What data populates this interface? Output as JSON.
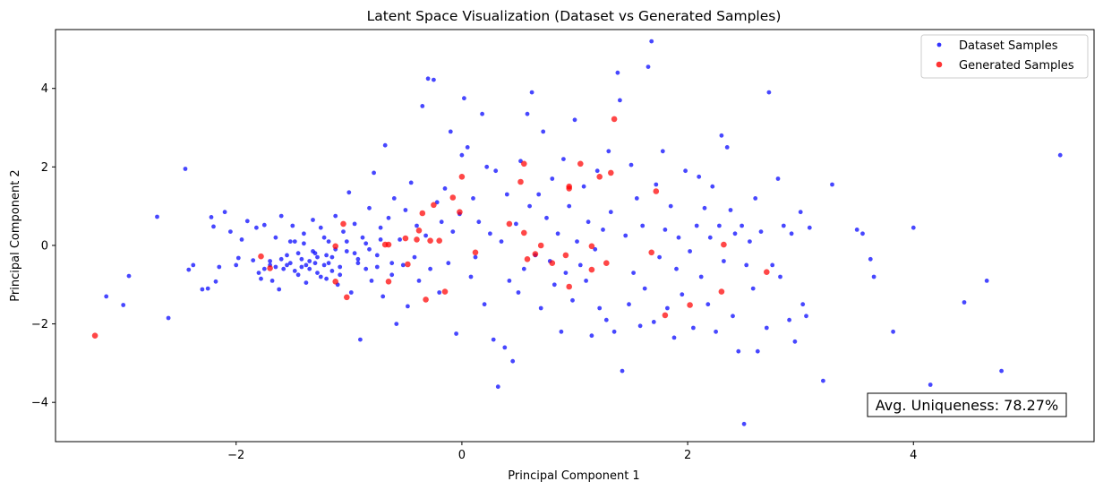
{
  "chart_data": {
    "type": "scatter",
    "title": "Latent Space Visualization (Dataset vs Generated Samples)",
    "xlabel": "Principal Component 1",
    "ylabel": "Principal Component 2",
    "xlim": [
      -3.6,
      5.6
    ],
    "ylim": [
      -5.0,
      5.5
    ],
    "xticks": [
      -2,
      0,
      2,
      4
    ],
    "xtick_labels": [
      "−2",
      "0",
      "2",
      "4"
    ],
    "yticks": [
      -4,
      -2,
      0,
      2,
      4
    ],
    "ytick_labels": [
      "−4",
      "−2",
      "0",
      "2",
      "4"
    ],
    "grid": false,
    "legend_position": "top-right",
    "annotation": "Avg. Uniqueness: 78.27%",
    "series": [
      {
        "name": "Dataset Samples",
        "color": "#0000ff",
        "points": [
          [
            -3.15,
            -1.3
          ],
          [
            -3.0,
            -1.52
          ],
          [
            -2.95,
            -0.78
          ],
          [
            -2.7,
            0.73
          ],
          [
            -2.6,
            -1.85
          ],
          [
            -2.45,
            1.95
          ],
          [
            -2.42,
            -0.62
          ],
          [
            -2.38,
            -0.5
          ],
          [
            -2.3,
            -1.12
          ],
          [
            -2.25,
            -1.1
          ],
          [
            -2.22,
            0.72
          ],
          [
            -2.2,
            0.48
          ],
          [
            -2.18,
            -0.92
          ],
          [
            -2.15,
            -0.55
          ],
          [
            -2.1,
            0.85
          ],
          [
            -2.05,
            0.35
          ],
          [
            -2.0,
            -0.5
          ],
          [
            -1.98,
            -0.32
          ],
          [
            -1.95,
            0.15
          ],
          [
            -1.9,
            0.62
          ],
          [
            -1.85,
            -0.38
          ],
          [
            -1.82,
            0.45
          ],
          [
            -1.8,
            -0.7
          ],
          [
            -1.78,
            -0.85
          ],
          [
            -1.75,
            0.52
          ],
          [
            -1.7,
            -0.5
          ],
          [
            -1.68,
            -0.9
          ],
          [
            -1.65,
            0.2
          ],
          [
            -1.62,
            -1.12
          ],
          [
            -1.6,
            0.75
          ],
          [
            -1.58,
            -0.6
          ],
          [
            -1.55,
            -0.25
          ],
          [
            -1.52,
            -0.45
          ],
          [
            -1.5,
            0.5
          ],
          [
            -1.48,
            0.1
          ],
          [
            -1.45,
            -0.75
          ],
          [
            -1.42,
            -0.55
          ],
          [
            -1.4,
            0.3
          ],
          [
            -1.38,
            -0.95
          ],
          [
            -1.35,
            -0.4
          ],
          [
            -1.32,
            0.65
          ],
          [
            -1.3,
            -0.2
          ],
          [
            -1.28,
            -0.7
          ],
          [
            -1.25,
            0.45
          ],
          [
            -1.22,
            -0.5
          ],
          [
            -1.2,
            -0.85
          ],
          [
            -1.18,
            0.1
          ],
          [
            -1.15,
            -0.3
          ],
          [
            -1.12,
            0.75
          ],
          [
            -1.1,
            -1.0
          ],
          [
            -1.08,
            -0.55
          ],
          [
            -1.05,
            0.35
          ],
          [
            -1.02,
            -0.15
          ],
          [
            -1.0,
            1.35
          ],
          [
            -0.98,
            -1.2
          ],
          [
            -0.95,
            0.55
          ],
          [
            -0.92,
            -0.45
          ],
          [
            -0.9,
            -2.4
          ],
          [
            -0.88,
            0.2
          ],
          [
            -0.85,
            -0.6
          ],
          [
            -0.82,
            0.95
          ],
          [
            -0.8,
            -0.9
          ],
          [
            -0.78,
            1.85
          ],
          [
            -0.75,
            -0.25
          ],
          [
            -0.72,
            0.45
          ],
          [
            -0.7,
            -1.3
          ],
          [
            -0.68,
            2.55
          ],
          [
            -0.65,
            0.7
          ],
          [
            -0.62,
            -0.75
          ],
          [
            -0.6,
            1.2
          ],
          [
            -0.58,
            -2.0
          ],
          [
            -0.55,
            0.15
          ],
          [
            -0.52,
            -0.5
          ],
          [
            -0.5,
            0.9
          ],
          [
            -0.48,
            -1.55
          ],
          [
            -0.45,
            1.6
          ],
          [
            -0.42,
            -0.3
          ],
          [
            -0.4,
            0.5
          ],
          [
            -0.38,
            -0.9
          ],
          [
            -0.35,
            3.55
          ],
          [
            -0.32,
            0.25
          ],
          [
            -0.3,
            4.25
          ],
          [
            -0.28,
            -0.6
          ],
          [
            -0.25,
            4.22
          ],
          [
            -0.22,
            1.1
          ],
          [
            -0.2,
            -1.2
          ],
          [
            -0.18,
            0.6
          ],
          [
            -0.15,
            1.45
          ],
          [
            -0.12,
            -0.45
          ],
          [
            -0.1,
            2.9
          ],
          [
            -0.08,
            0.35
          ],
          [
            -0.05,
            -2.25
          ],
          [
            -0.02,
            0.8
          ],
          [
            0.0,
            2.3
          ],
          [
            0.02,
            3.75
          ],
          [
            0.05,
            2.5
          ],
          [
            0.08,
            -0.8
          ],
          [
            0.1,
            1.2
          ],
          [
            0.12,
            -0.3
          ],
          [
            0.15,
            0.6
          ],
          [
            0.18,
            3.35
          ],
          [
            0.2,
            -1.5
          ],
          [
            0.22,
            2.0
          ],
          [
            0.25,
            0.3
          ],
          [
            0.28,
            -2.4
          ],
          [
            0.3,
            1.9
          ],
          [
            0.32,
            -3.6
          ],
          [
            0.35,
            0.1
          ],
          [
            0.38,
            -2.6
          ],
          [
            0.4,
            1.3
          ],
          [
            0.42,
            -0.9
          ],
          [
            0.45,
            -2.95
          ],
          [
            0.48,
            0.55
          ],
          [
            0.5,
            -1.2
          ],
          [
            0.52,
            2.15
          ],
          [
            0.55,
            -0.6
          ],
          [
            0.58,
            3.35
          ],
          [
            0.6,
            1.0
          ],
          [
            0.62,
            3.9
          ],
          [
            0.65,
            -0.25
          ],
          [
            0.68,
            1.3
          ],
          [
            0.7,
            -1.6
          ],
          [
            0.72,
            2.9
          ],
          [
            0.75,
            0.7
          ],
          [
            0.78,
            -0.4
          ],
          [
            0.8,
            1.7
          ],
          [
            0.82,
            -1.0
          ],
          [
            0.85,
            0.3
          ],
          [
            0.88,
            -2.2
          ],
          [
            0.9,
            2.2
          ],
          [
            0.92,
            -0.7
          ],
          [
            0.95,
            1.0
          ],
          [
            0.98,
            -1.4
          ],
          [
            1.0,
            3.2
          ],
          [
            1.02,
            0.1
          ],
          [
            1.05,
            -0.5
          ],
          [
            1.08,
            1.5
          ],
          [
            1.1,
            -0.9
          ],
          [
            1.12,
            0.6
          ],
          [
            1.15,
            -2.3
          ],
          [
            1.18,
            -0.1
          ],
          [
            1.2,
            1.9
          ],
          [
            1.22,
            -1.6
          ],
          [
            1.25,
            0.4
          ],
          [
            1.28,
            -1.9
          ],
          [
            1.3,
            2.4
          ],
          [
            1.32,
            0.85
          ],
          [
            1.35,
            -2.2
          ],
          [
            1.38,
            4.4
          ],
          [
            1.4,
            3.7
          ],
          [
            1.42,
            -3.2
          ],
          [
            1.45,
            0.25
          ],
          [
            1.48,
            -1.5
          ],
          [
            1.5,
            2.05
          ],
          [
            1.52,
            -0.7
          ],
          [
            1.55,
            1.2
          ],
          [
            1.58,
            -2.05
          ],
          [
            1.6,
            0.5
          ],
          [
            1.62,
            -1.1
          ],
          [
            1.65,
            4.55
          ],
          [
            1.68,
            5.2
          ],
          [
            1.7,
            -1.95
          ],
          [
            1.72,
            1.55
          ],
          [
            1.75,
            -0.3
          ],
          [
            1.78,
            2.4
          ],
          [
            1.8,
            0.4
          ],
          [
            1.82,
            -1.6
          ],
          [
            1.85,
            1.0
          ],
          [
            1.88,
            -2.35
          ],
          [
            1.9,
            -0.6
          ],
          [
            1.92,
            0.2
          ],
          [
            1.95,
            -1.25
          ],
          [
            1.98,
            1.9
          ],
          [
            2.02,
            -0.15
          ],
          [
            2.05,
            -2.1
          ],
          [
            2.08,
            0.5
          ],
          [
            2.1,
            1.75
          ],
          [
            2.12,
            -0.8
          ],
          [
            2.15,
            0.95
          ],
          [
            2.18,
            -1.5
          ],
          [
            2.2,
            0.2
          ],
          [
            2.22,
            1.5
          ],
          [
            2.25,
            -2.2
          ],
          [
            2.28,
            0.5
          ],
          [
            2.3,
            2.8
          ],
          [
            2.32,
            -0.4
          ],
          [
            2.35,
            2.5
          ],
          [
            2.38,
            0.9
          ],
          [
            2.4,
            -1.8
          ],
          [
            2.42,
            0.3
          ],
          [
            2.45,
            -2.7
          ],
          [
            2.48,
            0.5
          ],
          [
            2.5,
            -4.55
          ],
          [
            2.52,
            -0.5
          ],
          [
            2.55,
            0.1
          ],
          [
            2.58,
            -1.1
          ],
          [
            2.6,
            1.2
          ],
          [
            2.62,
            -2.7
          ],
          [
            2.65,
            0.35
          ],
          [
            2.7,
            -2.1
          ],
          [
            2.72,
            3.9
          ],
          [
            2.75,
            -0.5
          ],
          [
            2.8,
            1.7
          ],
          [
            2.82,
            -0.8
          ],
          [
            2.85,
            0.5
          ],
          [
            2.9,
            -1.9
          ],
          [
            2.92,
            0.3
          ],
          [
            2.95,
            -2.45
          ],
          [
            3.0,
            0.85
          ],
          [
            3.02,
            -1.5
          ],
          [
            3.05,
            -1.8
          ],
          [
            3.08,
            0.45
          ],
          [
            3.2,
            -3.45
          ],
          [
            3.28,
            1.55
          ],
          [
            3.5,
            0.4
          ],
          [
            3.55,
            0.3
          ],
          [
            3.62,
            -0.35
          ],
          [
            3.65,
            -0.8
          ],
          [
            3.82,
            -2.2
          ],
          [
            4.0,
            0.45
          ],
          [
            4.15,
            -3.55
          ],
          [
            4.45,
            -1.45
          ],
          [
            4.65,
            -0.9
          ],
          [
            4.78,
            -3.2
          ],
          [
            5.3,
            2.3
          ],
          [
            -1.55,
            -0.5
          ],
          [
            -1.48,
            -0.65
          ],
          [
            -1.42,
            -0.35
          ],
          [
            -1.35,
            -0.6
          ],
          [
            -1.3,
            -0.45
          ],
          [
            -1.25,
            -0.8
          ],
          [
            -1.2,
            -0.25
          ],
          [
            -1.15,
            -0.65
          ],
          [
            -1.6,
            -0.35
          ],
          [
            -1.65,
            -0.55
          ],
          [
            -1.7,
            -0.4
          ],
          [
            -1.75,
            -0.6
          ],
          [
            -1.45,
            -0.2
          ],
          [
            -1.38,
            -0.5
          ],
          [
            -1.28,
            -0.3
          ],
          [
            -1.18,
            -0.45
          ],
          [
            -1.08,
            -0.75
          ],
          [
            -0.95,
            -0.2
          ],
          [
            -0.85,
            0.05
          ],
          [
            -0.75,
            -0.55
          ],
          [
            -1.52,
            0.1
          ],
          [
            -1.4,
            0.05
          ],
          [
            -1.32,
            -0.15
          ],
          [
            -1.22,
            0.2
          ],
          [
            -1.12,
            -0.1
          ],
          [
            -1.02,
            0.1
          ],
          [
            -0.92,
            -0.35
          ],
          [
            -0.82,
            -0.1
          ],
          [
            -0.72,
            0.15
          ],
          [
            -0.62,
            -0.45
          ]
        ]
      },
      {
        "name": "Generated Samples",
        "color": "#ff0000",
        "points": [
          [
            -3.25,
            -2.3
          ],
          [
            -1.78,
            -0.28
          ],
          [
            -1.7,
            -0.58
          ],
          [
            -1.12,
            -0.92
          ],
          [
            -1.12,
            -0.02
          ],
          [
            -1.05,
            0.55
          ],
          [
            -1.02,
            -1.32
          ],
          [
            -0.68,
            0.02
          ],
          [
            -0.65,
            0.02
          ],
          [
            -0.65,
            -0.92
          ],
          [
            -0.5,
            0.18
          ],
          [
            -0.48,
            -0.48
          ],
          [
            -0.4,
            0.15
          ],
          [
            -0.38,
            0.38
          ],
          [
            -0.35,
            0.82
          ],
          [
            -0.32,
            -1.38
          ],
          [
            -0.28,
            0.12
          ],
          [
            -0.25,
            1.03
          ],
          [
            -0.2,
            0.12
          ],
          [
            -0.15,
            -1.18
          ],
          [
            -0.08,
            1.22
          ],
          [
            -0.02,
            0.85
          ],
          [
            0.0,
            1.75
          ],
          [
            0.12,
            -0.18
          ],
          [
            0.42,
            0.55
          ],
          [
            0.52,
            1.62
          ],
          [
            0.55,
            2.08
          ],
          [
            0.55,
            0.32
          ],
          [
            0.58,
            -0.35
          ],
          [
            0.65,
            -0.22
          ],
          [
            0.7,
            0.0
          ],
          [
            0.8,
            -0.45
          ],
          [
            0.92,
            -0.25
          ],
          [
            0.95,
            1.5
          ],
          [
            0.95,
            1.45
          ],
          [
            0.95,
            -1.05
          ],
          [
            1.05,
            2.08
          ],
          [
            1.15,
            -0.62
          ],
          [
            1.15,
            -0.02
          ],
          [
            1.22,
            1.75
          ],
          [
            1.28,
            -0.45
          ],
          [
            1.32,
            1.85
          ],
          [
            1.35,
            3.22
          ],
          [
            1.68,
            -0.18
          ],
          [
            1.72,
            1.38
          ],
          [
            1.8,
            -1.78
          ],
          [
            2.02,
            -1.52
          ],
          [
            2.3,
            -1.18
          ],
          [
            2.32,
            0.02
          ],
          [
            2.7,
            -0.68
          ]
        ]
      }
    ]
  }
}
